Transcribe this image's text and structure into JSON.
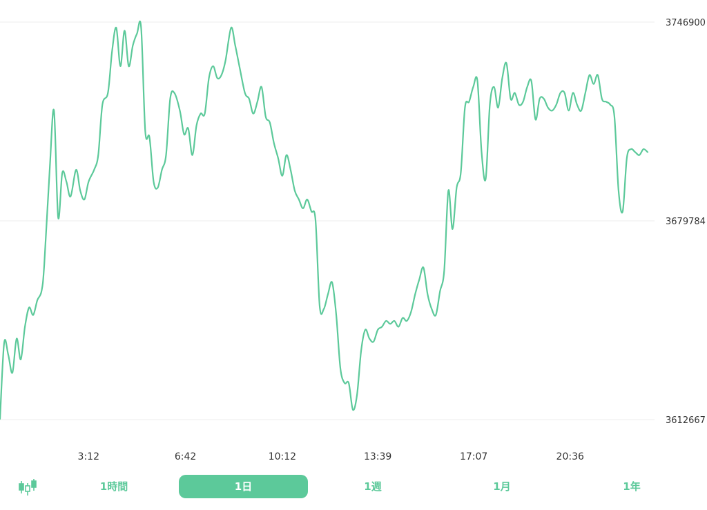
{
  "colors": {
    "line": "#5cc99a",
    "grid": "#eeeeee",
    "active_bg": "#5cc99a"
  },
  "chart_data": {
    "type": "line",
    "title": "",
    "xlabel": "",
    "ylabel": "",
    "ylim": [
      3612667,
      3746900
    ],
    "yticks": [
      "3746900",
      "3679784",
      "3612667"
    ],
    "xticks": [
      "3:12",
      "6:42",
      "10:12",
      "13:39",
      "17:07",
      "20:36"
    ],
    "xtick_times": [
      3.2,
      6.7,
      10.2,
      13.65,
      17.117,
      20.6
    ],
    "xlim": [
      0,
      23.65
    ],
    "grid": true,
    "series": [
      {
        "points": [
          [
            0.0,
            3612900
          ],
          [
            0.15,
            3638500
          ],
          [
            0.3,
            3634500
          ],
          [
            0.45,
            3628500
          ],
          [
            0.6,
            3640000
          ],
          [
            0.75,
            3633000
          ],
          [
            0.9,
            3644000
          ],
          [
            1.05,
            3650500
          ],
          [
            1.2,
            3648000
          ],
          [
            1.35,
            3653000
          ],
          [
            1.5,
            3656000
          ],
          [
            1.6,
            3665000
          ],
          [
            1.8,
            3698000
          ],
          [
            1.95,
            3717000
          ],
          [
            2.1,
            3681000
          ],
          [
            2.25,
            3696000
          ],
          [
            2.4,
            3693000
          ],
          [
            2.55,
            3688000
          ],
          [
            2.75,
            3697000
          ],
          [
            2.9,
            3690000
          ],
          [
            3.05,
            3687000
          ],
          [
            3.2,
            3693000
          ],
          [
            3.4,
            3697000
          ],
          [
            3.55,
            3702000
          ],
          [
            3.7,
            3719000
          ],
          [
            3.9,
            3723000
          ],
          [
            4.05,
            3737000
          ],
          [
            4.2,
            3745000
          ],
          [
            4.35,
            3732000
          ],
          [
            4.5,
            3744000
          ],
          [
            4.65,
            3732000
          ],
          [
            4.8,
            3739000
          ],
          [
            4.95,
            3743000
          ],
          [
            5.1,
            3745000
          ],
          [
            5.25,
            3710000
          ],
          [
            5.4,
            3708000
          ],
          [
            5.55,
            3693000
          ],
          [
            5.7,
            3691000
          ],
          [
            5.85,
            3697000
          ],
          [
            6.0,
            3702000
          ],
          [
            6.15,
            3721000
          ],
          [
            6.3,
            3723000
          ],
          [
            6.5,
            3717000
          ],
          [
            6.65,
            3709000
          ],
          [
            6.8,
            3711000
          ],
          [
            6.95,
            3702000
          ],
          [
            7.1,
            3712000
          ],
          [
            7.25,
            3716000
          ],
          [
            7.4,
            3716000
          ],
          [
            7.55,
            3728000
          ],
          [
            7.7,
            3732000
          ],
          [
            7.85,
            3728000
          ],
          [
            8.0,
            3729000
          ],
          [
            8.15,
            3734000
          ],
          [
            8.35,
            3745000
          ],
          [
            8.5,
            3739000
          ],
          [
            8.65,
            3732000
          ],
          [
            8.85,
            3723000
          ],
          [
            9.0,
            3721000
          ],
          [
            9.15,
            3716000
          ],
          [
            9.3,
            3720000
          ],
          [
            9.45,
            3725000
          ],
          [
            9.6,
            3715000
          ],
          [
            9.75,
            3713000
          ],
          [
            9.9,
            3706000
          ],
          [
            10.05,
            3701000
          ],
          [
            10.2,
            3695000
          ],
          [
            10.35,
            3702000
          ],
          [
            10.5,
            3697000
          ],
          [
            10.65,
            3690000
          ],
          [
            10.8,
            3687000
          ],
          [
            10.95,
            3684000
          ],
          [
            11.1,
            3687000
          ],
          [
            11.25,
            3683000
          ],
          [
            11.4,
            3680000
          ],
          [
            11.55,
            3651000
          ],
          [
            11.7,
            3650000
          ],
          [
            11.85,
            3655000
          ],
          [
            12.0,
            3659000
          ],
          [
            12.15,
            3648000
          ],
          [
            12.3,
            3630000
          ],
          [
            12.45,
            3625000
          ],
          [
            12.6,
            3625000
          ],
          [
            12.75,
            3616000
          ],
          [
            12.9,
            3621000
          ],
          [
            13.05,
            3636000
          ],
          [
            13.2,
            3643000
          ],
          [
            13.35,
            3640000
          ],
          [
            13.5,
            3639000
          ],
          [
            13.65,
            3643000
          ],
          [
            13.8,
            3644000
          ],
          [
            13.95,
            3646000
          ],
          [
            14.1,
            3645000
          ],
          [
            14.25,
            3646000
          ],
          [
            14.4,
            3644000
          ],
          [
            14.55,
            3647000
          ],
          [
            14.7,
            3646000
          ],
          [
            14.85,
            3649000
          ],
          [
            15.0,
            3655000
          ],
          [
            15.15,
            3660000
          ],
          [
            15.3,
            3664000
          ],
          [
            15.45,
            3655000
          ],
          [
            15.6,
            3650000
          ],
          [
            15.75,
            3648000
          ],
          [
            15.9,
            3656000
          ],
          [
            16.05,
            3663000
          ],
          [
            16.2,
            3690000
          ],
          [
            16.35,
            3677000
          ],
          [
            16.5,
            3691000
          ],
          [
            16.65,
            3696000
          ],
          [
            16.8,
            3718000
          ],
          [
            16.95,
            3720000
          ],
          [
            17.1,
            3725000
          ],
          [
            17.25,
            3727000
          ],
          [
            17.4,
            3703000
          ],
          [
            17.55,
            3694000
          ],
          [
            17.7,
            3719000
          ],
          [
            17.85,
            3725000
          ],
          [
            18.0,
            3718000
          ],
          [
            18.15,
            3728000
          ],
          [
            18.3,
            3733000
          ],
          [
            18.45,
            3721000
          ],
          [
            18.6,
            3723000
          ],
          [
            18.75,
            3719000
          ],
          [
            18.9,
            3720000
          ],
          [
            19.05,
            3725000
          ],
          [
            19.2,
            3727000
          ],
          [
            19.35,
            3714000
          ],
          [
            19.5,
            3721000
          ],
          [
            19.65,
            3721000
          ],
          [
            19.8,
            3718000
          ],
          [
            19.95,
            3717000
          ],
          [
            20.1,
            3719000
          ],
          [
            20.25,
            3723000
          ],
          [
            20.4,
            3723000
          ],
          [
            20.55,
            3717000
          ],
          [
            20.7,
            3723000
          ],
          [
            20.85,
            3719000
          ],
          [
            21.0,
            3717000
          ],
          [
            21.15,
            3723000
          ],
          [
            21.3,
            3729000
          ],
          [
            21.45,
            3726000
          ],
          [
            21.6,
            3729000
          ],
          [
            21.75,
            3721000
          ],
          [
            21.9,
            3720000
          ],
          [
            22.05,
            3719000
          ],
          [
            22.2,
            3715000
          ],
          [
            22.35,
            3690000
          ],
          [
            22.5,
            3683000
          ],
          [
            22.65,
            3701000
          ],
          [
            22.8,
            3704000
          ],
          [
            22.95,
            3703000
          ],
          [
            23.1,
            3702000
          ],
          [
            23.25,
            3704000
          ],
          [
            23.4,
            3703000
          ]
        ]
      }
    ]
  },
  "timeframes": {
    "items": [
      {
        "label": "1時間",
        "active": false
      },
      {
        "label": "1日",
        "active": true
      },
      {
        "label": "1週",
        "active": false
      },
      {
        "label": "1月",
        "active": false
      },
      {
        "label": "1年",
        "active": false
      }
    ]
  },
  "controls": {
    "candle_icon": "candlestick-icon"
  }
}
